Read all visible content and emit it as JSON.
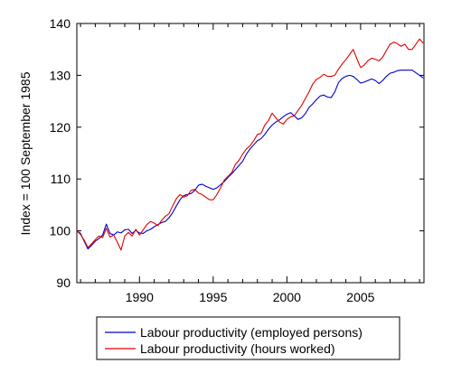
{
  "chart_data": {
    "type": "line",
    "ylabel": "Index = 100 September 1985",
    "xlabel": "",
    "xlim": [
      1985.75,
      2009.3
    ],
    "ylim": [
      90,
      140
    ],
    "x_ticks": [
      1990,
      1995,
      2000,
      2005
    ],
    "y_ticks": [
      90,
      100,
      110,
      120,
      130,
      140
    ],
    "grid": false,
    "legend_position": "bottom",
    "series": [
      {
        "name": "Labour productivity (employed persons)",
        "color": "#0000cc",
        "x": [
          1985.75,
          1986.0,
          1986.25,
          1986.5,
          1986.75,
          1987.0,
          1987.25,
          1987.5,
          1987.75,
          1988.0,
          1988.25,
          1988.5,
          1988.75,
          1989.0,
          1989.25,
          1989.5,
          1989.75,
          1990.0,
          1990.25,
          1990.5,
          1990.75,
          1991.0,
          1991.25,
          1991.5,
          1991.75,
          1992.0,
          1992.25,
          1992.5,
          1992.75,
          1993.0,
          1993.25,
          1993.5,
          1993.75,
          1994.0,
          1994.25,
          1994.5,
          1994.75,
          1995.0,
          1995.25,
          1995.5,
          1995.75,
          1996.0,
          1996.25,
          1996.5,
          1996.75,
          1997.0,
          1997.25,
          1997.5,
          1997.75,
          1998.0,
          1998.25,
          1998.5,
          1998.75,
          1999.0,
          1999.25,
          1999.5,
          1999.75,
          2000.0,
          2000.25,
          2000.5,
          2000.75,
          2001.0,
          2001.25,
          2001.5,
          2001.75,
          2002.0,
          2002.25,
          2002.5,
          2002.75,
          2003.0,
          2003.25,
          2003.5,
          2003.75,
          2004.0,
          2004.25,
          2004.5,
          2004.75,
          2005.0,
          2005.25,
          2005.5,
          2005.75,
          2006.0,
          2006.25,
          2006.5,
          2006.75,
          2007.0,
          2007.25,
          2007.5,
          2007.75,
          2008.0,
          2008.25,
          2008.5,
          2008.75,
          2009.0,
          2009.25
        ],
        "values": [
          100.0,
          99.5,
          98.0,
          96.5,
          97.2,
          98.0,
          98.5,
          99.2,
          101.3,
          99.5,
          99.2,
          99.8,
          99.6,
          100.2,
          100.3,
          99.5,
          100.1,
          99.6,
          99.5,
          100.0,
          100.3,
          100.8,
          101.2,
          101.6,
          101.8,
          102.5,
          103.5,
          104.8,
          106.0,
          106.8,
          107.0,
          107.2,
          107.8,
          108.8,
          109.0,
          108.6,
          108.3,
          108.0,
          108.3,
          108.9,
          109.5,
          110.3,
          111.0,
          111.8,
          112.6,
          113.4,
          114.8,
          115.8,
          116.6,
          117.4,
          117.8,
          118.6,
          119.6,
          120.4,
          121.0,
          121.4,
          122.0,
          122.5,
          122.8,
          122.2,
          121.5,
          121.8,
          122.6,
          123.8,
          124.5,
          125.3,
          126.0,
          126.2,
          125.8,
          125.7,
          126.8,
          128.6,
          129.4,
          129.8,
          130.0,
          129.8,
          129.2,
          128.5,
          128.7,
          129.0,
          129.3,
          129.0,
          128.4,
          129.0,
          129.8,
          130.4,
          130.6,
          130.9,
          131.0,
          131.0,
          131.0,
          131.0,
          130.5,
          130.0,
          129.5
        ]
      },
      {
        "name": "Labour productivity (hours worked)",
        "color": "#e00000",
        "x": [
          1985.75,
          1986.0,
          1986.25,
          1986.5,
          1986.75,
          1987.0,
          1987.25,
          1987.5,
          1987.75,
          1988.0,
          1988.25,
          1988.5,
          1988.75,
          1989.0,
          1989.25,
          1989.5,
          1989.75,
          1990.0,
          1990.25,
          1990.5,
          1990.75,
          1991.0,
          1991.25,
          1991.5,
          1991.75,
          1992.0,
          1992.25,
          1992.5,
          1992.75,
          1993.0,
          1993.25,
          1993.5,
          1993.75,
          1994.0,
          1994.25,
          1994.5,
          1994.75,
          1995.0,
          1995.25,
          1995.5,
          1995.75,
          1996.0,
          1996.25,
          1996.5,
          1996.75,
          1997.0,
          1997.25,
          1997.5,
          1997.75,
          1998.0,
          1998.25,
          1998.5,
          1998.75,
          1999.0,
          1999.25,
          1999.5,
          1999.75,
          2000.0,
          2000.25,
          2000.5,
          2000.75,
          2001.0,
          2001.25,
          2001.5,
          2001.75,
          2002.0,
          2002.25,
          2002.5,
          2002.75,
          2003.0,
          2003.25,
          2003.5,
          2003.75,
          2004.0,
          2004.25,
          2004.5,
          2004.75,
          2005.0,
          2005.25,
          2005.5,
          2005.75,
          2006.0,
          2006.25,
          2006.5,
          2006.75,
          2007.0,
          2007.25,
          2007.5,
          2007.75,
          2008.0,
          2008.25,
          2008.5,
          2008.75,
          2009.0,
          2009.25
        ],
        "values": [
          100.0,
          99.3,
          98.2,
          96.8,
          97.5,
          98.3,
          99.0,
          98.7,
          100.5,
          98.8,
          99.2,
          97.8,
          96.3,
          99.0,
          99.7,
          99.0,
          100.3,
          99.2,
          100.2,
          101.2,
          101.8,
          101.5,
          101.0,
          102.0,
          102.8,
          103.3,
          104.8,
          106.2,
          107.0,
          106.5,
          106.8,
          107.8,
          108.0,
          107.3,
          107.0,
          106.5,
          106.0,
          106.0,
          107.0,
          108.3,
          109.8,
          110.5,
          111.2,
          112.8,
          113.6,
          114.8,
          115.8,
          116.4,
          117.4,
          118.6,
          118.8,
          120.4,
          121.3,
          122.7,
          121.8,
          121.0,
          120.6,
          121.5,
          122.0,
          122.2,
          123.2,
          124.2,
          125.5,
          126.8,
          128.3,
          129.2,
          129.6,
          130.2,
          129.8,
          129.8,
          130.0,
          131.2,
          132.2,
          133.0,
          134.0,
          135.0,
          133.2,
          131.5,
          132.0,
          132.8,
          133.3,
          133.1,
          132.8,
          133.5,
          134.8,
          136.0,
          136.4,
          136.1,
          135.6,
          136.0,
          135.0,
          135.0,
          136.0,
          137.0,
          136.2
        ]
      }
    ]
  }
}
